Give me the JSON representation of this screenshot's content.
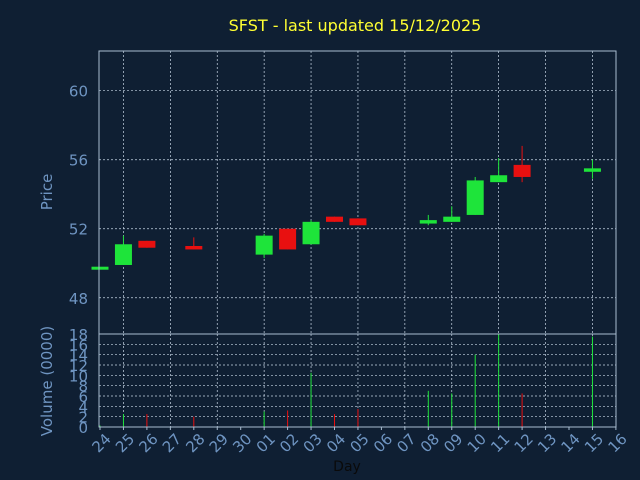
{
  "colors": {
    "background": "#0f1f33",
    "title": "#ffff33",
    "axis_text": "#6f95c2",
    "frame": "#a8bcd0",
    "grid": "#c8d6e6",
    "up": "#1ee43a",
    "down": "#e81010"
  },
  "chart_data": {
    "type": "candlestick",
    "title": "SFST - last updated 15/12/2025",
    "price_panel": {
      "ylabel": "Price",
      "ylim": [
        45.9,
        62.3
      ],
      "yticks": [
        "48",
        "52",
        "56",
        "60"
      ],
      "ytick_values": [
        48,
        52,
        56,
        60
      ],
      "grid": true
    },
    "volume_panel": {
      "ylabel": "Volume (0000)",
      "ylim": [
        0,
        18
      ],
      "yticks": [
        "0",
        "2",
        "4",
        "6",
        "8",
        "10",
        "12",
        "14",
        "16",
        "18"
      ],
      "ytick_values": [
        0,
        2,
        4,
        6,
        8,
        10,
        12,
        14,
        16,
        18
      ],
      "grid": true
    },
    "xlabel": "Day",
    "xticks": [
      "24",
      "25",
      "26",
      "27",
      "28",
      "29",
      "30",
      "01",
      "02",
      "03",
      "04",
      "05",
      "06",
      "07",
      "08",
      "09",
      "10",
      "11",
      "12",
      "13",
      "14",
      "15",
      "16"
    ],
    "candles": [
      {
        "day": "24",
        "open": 49.8,
        "high": 49.8,
        "low": 49.8,
        "close": 49.8,
        "volume": 0.3
      },
      {
        "day": "25",
        "open": 49.9,
        "high": 51.6,
        "low": 49.9,
        "close": 51.1,
        "volume": 2.5
      },
      {
        "day": "26",
        "open": 51.3,
        "high": 51.3,
        "low": 50.9,
        "close": 50.9,
        "volume": 2.5
      },
      {
        "day": "28",
        "open": 51.0,
        "high": 51.5,
        "low": 50.8,
        "close": 50.8,
        "volume": 2.0
      },
      {
        "day": "01",
        "open": 50.5,
        "high": 51.7,
        "low": 50.3,
        "close": 51.6,
        "volume": 3.0
      },
      {
        "day": "02",
        "open": 52.0,
        "high": 52.0,
        "low": 50.8,
        "close": 50.8,
        "volume": 3.2
      },
      {
        "day": "03",
        "open": 51.1,
        "high": 52.5,
        "low": 51.1,
        "close": 52.4,
        "volume": 10.5
      },
      {
        "day": "04",
        "open": 52.7,
        "high": 52.7,
        "low": 52.4,
        "close": 52.4,
        "volume": 2.5
      },
      {
        "day": "05",
        "open": 52.6,
        "high": 52.6,
        "low": 52.2,
        "close": 52.2,
        "volume": 3.5
      },
      {
        "day": "08",
        "open": 52.3,
        "high": 52.8,
        "low": 52.2,
        "close": 52.5,
        "volume": 7.0
      },
      {
        "day": "09",
        "open": 52.4,
        "high": 53.3,
        "low": 52.4,
        "close": 52.7,
        "volume": 6.5
      },
      {
        "day": "10",
        "open": 52.8,
        "high": 55.0,
        "low": 52.8,
        "close": 54.8,
        "volume": 14.0
      },
      {
        "day": "11",
        "open": 54.7,
        "high": 56.1,
        "low": 54.7,
        "close": 55.1,
        "volume": 18.0
      },
      {
        "day": "12",
        "open": 55.7,
        "high": 56.8,
        "low": 54.7,
        "close": 55.0,
        "volume": 6.5
      },
      {
        "day": "15",
        "open": 55.3,
        "high": 56.0,
        "low": 54.9,
        "close": 55.5,
        "volume": 17.5
      }
    ]
  }
}
